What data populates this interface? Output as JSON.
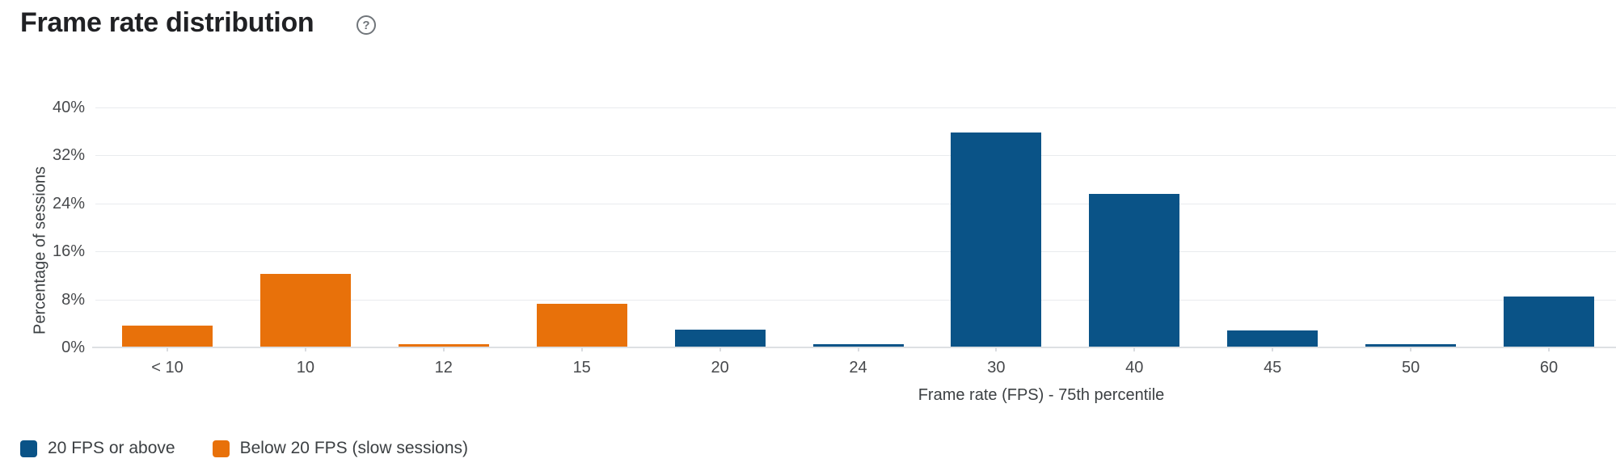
{
  "header": {
    "title": "Frame rate distribution",
    "help_icon": "question-mark-circle-icon",
    "help_glyph": "?"
  },
  "colors": {
    "above_20_blue": "#0a5387",
    "below_20_orange": "#e8710a",
    "gridline": "#e9ebee",
    "axis_line": "#dde0e3",
    "title_text": "#202124",
    "label_text": "#47494c"
  },
  "chart_data": {
    "type": "bar",
    "title": "Frame rate distribution",
    "xlabel": "Frame rate (FPS) - 75th percentile",
    "ylabel": "Percentage of sessions",
    "categories": [
      "< 10",
      "10",
      "12",
      "15",
      "20",
      "24",
      "30",
      "40",
      "45",
      "50",
      "60"
    ],
    "values": [
      3.6,
      12.3,
      0.5,
      7.3,
      3.0,
      0.5,
      35.8,
      25.6,
      2.8,
      0.5,
      8.5
    ],
    "bar_series": [
      "below_20",
      "below_20",
      "below_20",
      "below_20",
      "above_20",
      "above_20",
      "above_20",
      "above_20",
      "above_20",
      "above_20",
      "above_20"
    ],
    "series_colors": {
      "above_20": "#0a5387",
      "below_20": "#e8710a"
    },
    "yticks": [
      "0%",
      "8%",
      "16%",
      "24%",
      "32%",
      "40%"
    ],
    "ylim": [
      0,
      40
    ],
    "grid": true,
    "legend_position": "bottom-left",
    "legend": [
      {
        "key": "above_20",
        "label": "20 FPS or above"
      },
      {
        "key": "below_20",
        "label": "Below 20 FPS (slow sessions)"
      }
    ]
  }
}
